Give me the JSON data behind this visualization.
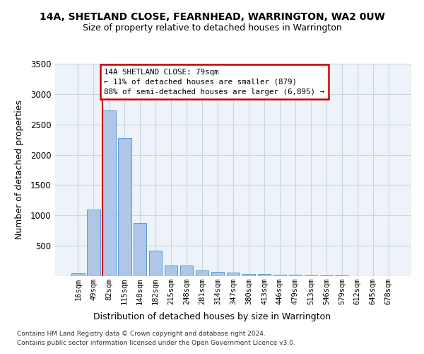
{
  "title1": "14A, SHETLAND CLOSE, FEARNHEAD, WARRINGTON, WA2 0UW",
  "title2": "Size of property relative to detached houses in Warrington",
  "xlabel": "Distribution of detached houses by size in Warrington",
  "ylabel": "Number of detached properties",
  "categories": [
    "16sqm",
    "49sqm",
    "82sqm",
    "115sqm",
    "148sqm",
    "182sqm",
    "215sqm",
    "248sqm",
    "281sqm",
    "314sqm",
    "347sqm",
    "380sqm",
    "413sqm",
    "446sqm",
    "479sqm",
    "513sqm",
    "546sqm",
    "579sqm",
    "612sqm",
    "645sqm",
    "678sqm"
  ],
  "values": [
    50,
    1100,
    2730,
    2280,
    880,
    420,
    175,
    170,
    95,
    65,
    55,
    40,
    35,
    25,
    20,
    15,
    10,
    8,
    5,
    3,
    2
  ],
  "bar_color": "#aec6e8",
  "bar_edge_color": "#5b9bd5",
  "bg_color": "#eef3f9",
  "grid_color": "#c8d4e3",
  "vline_color": "#cc0000",
  "annotation_text": "14A SHETLAND CLOSE: 79sqm\n← 11% of detached houses are smaller (879)\n88% of semi-detached houses are larger (6,895) →",
  "annotation_box_edgecolor": "#cc0000",
  "ylim": [
    0,
    3500
  ],
  "yticks": [
    0,
    500,
    1000,
    1500,
    2000,
    2500,
    3000,
    3500
  ],
  "footer1": "Contains HM Land Registry data © Crown copyright and database right 2024.",
  "footer2": "Contains public sector information licensed under the Open Government Licence v3.0."
}
